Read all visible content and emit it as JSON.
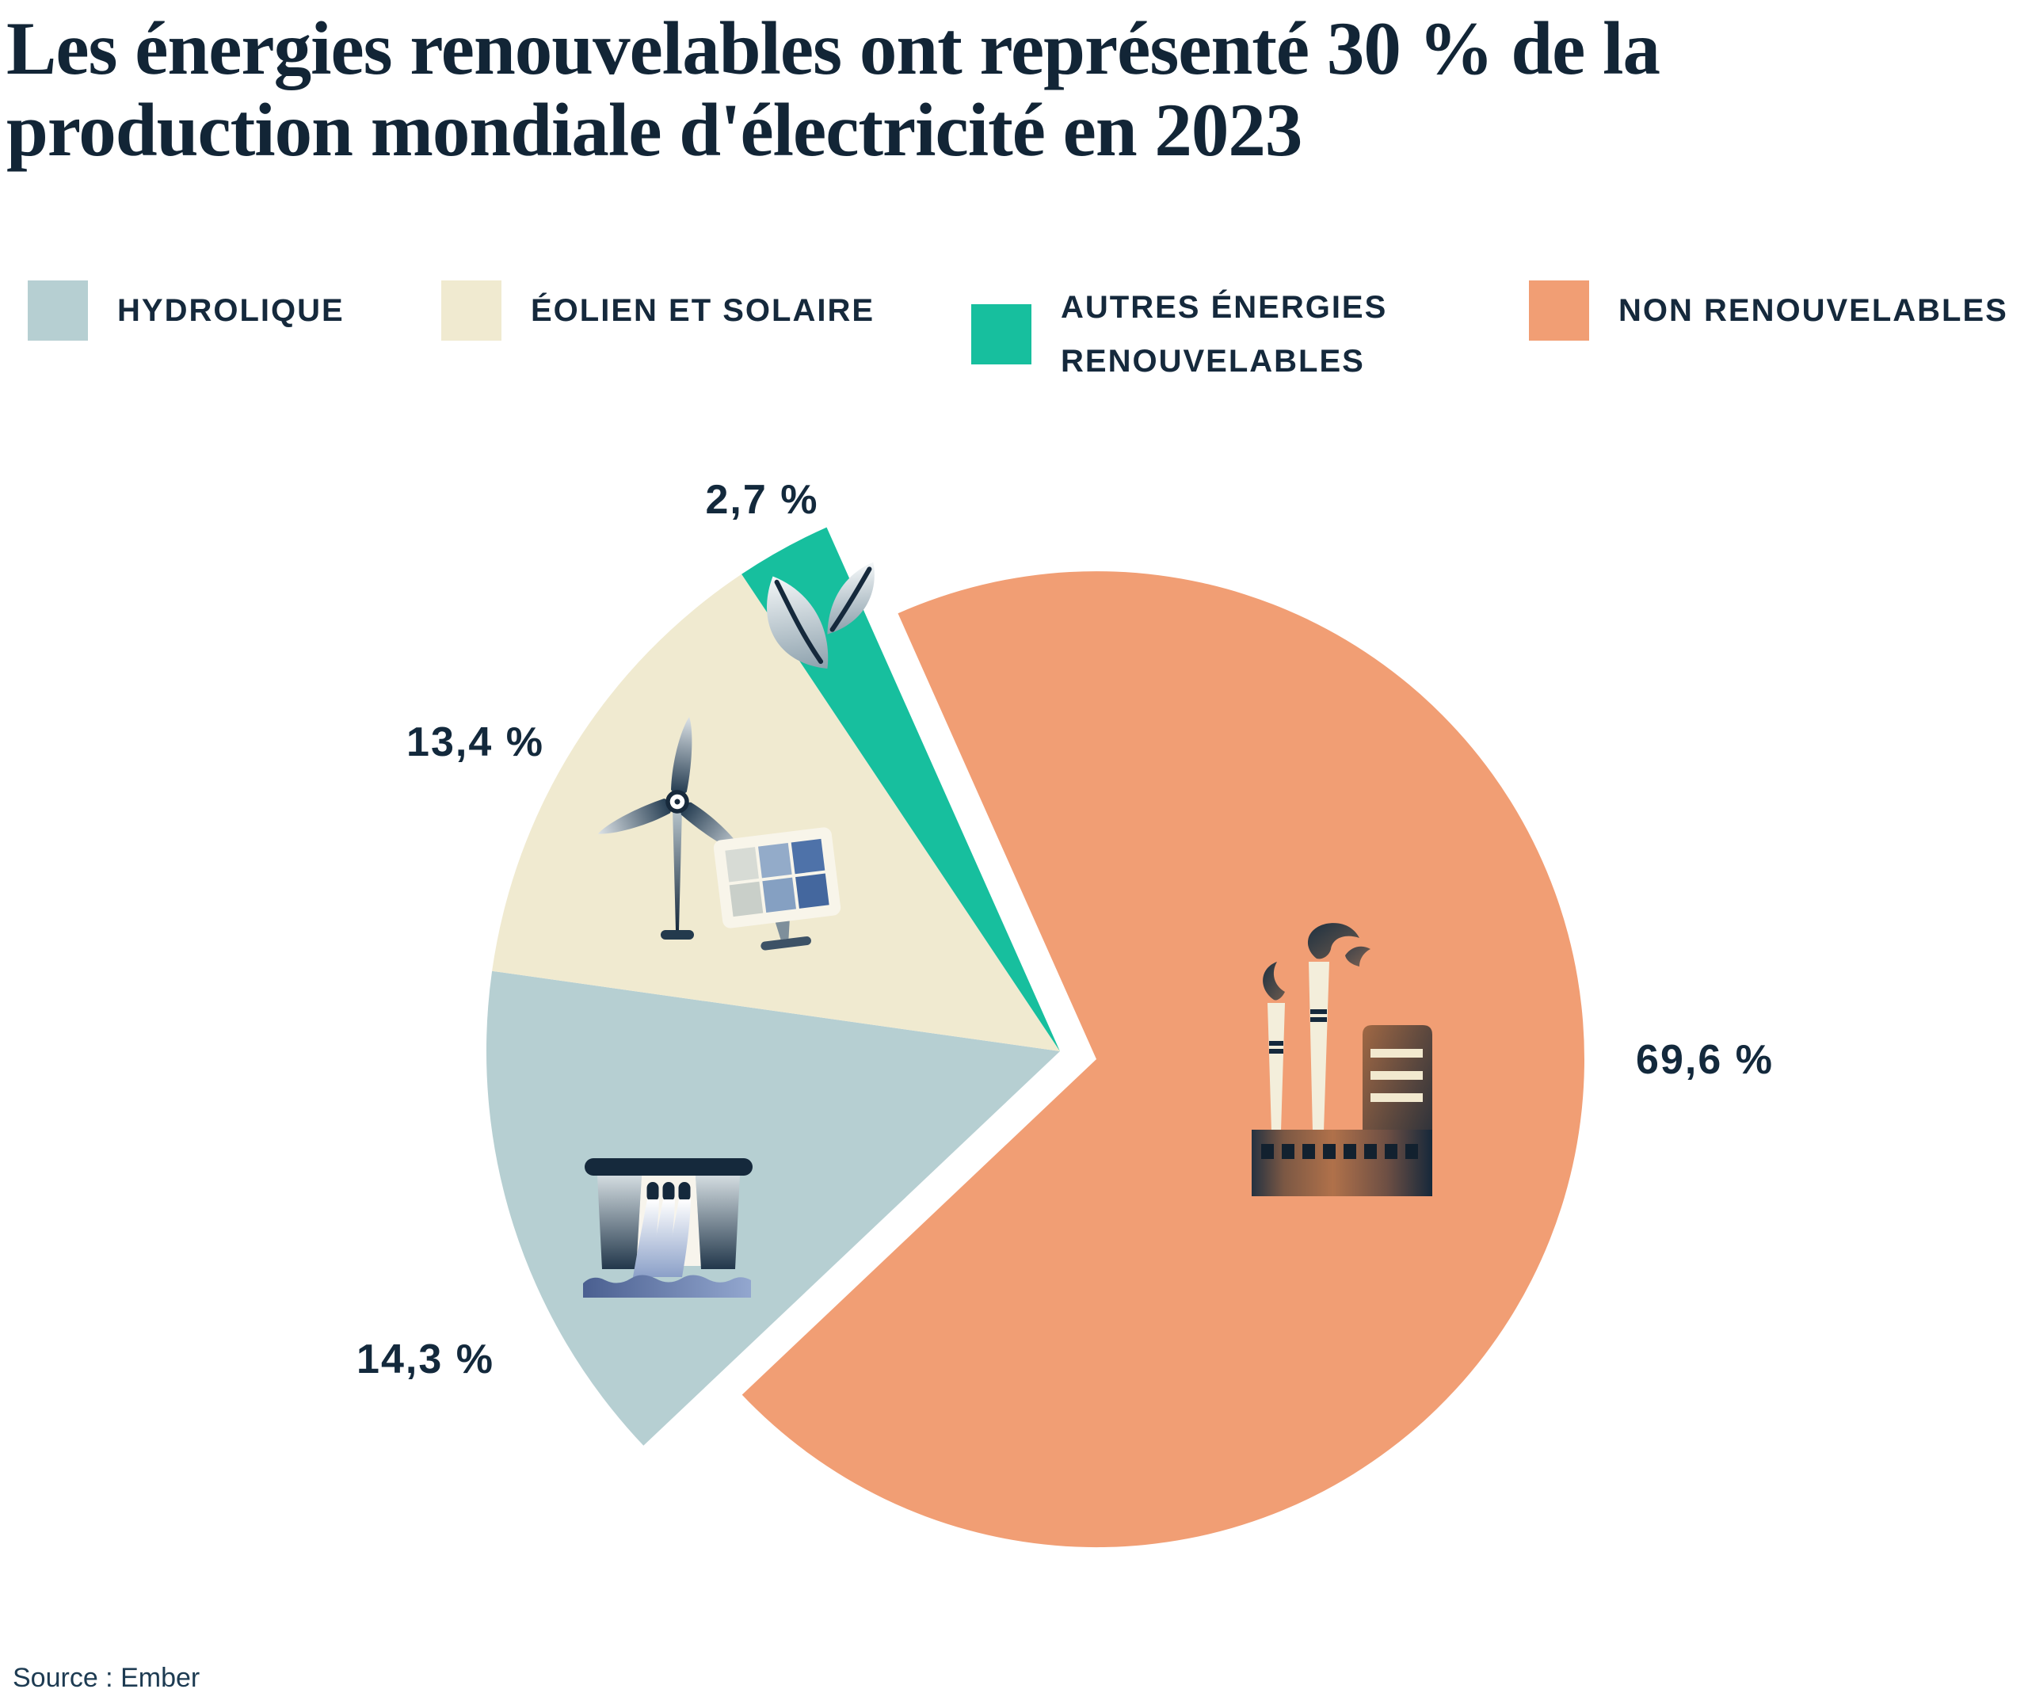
{
  "title": {
    "line1": "Les énergies renouvelables ont représenté 30 % de la",
    "line2": "production mondiale d'électricité en 2023",
    "full": "Les énergies renouvelables ont représenté 30 % de la production mondiale d'électricité en 2023"
  },
  "legend": {
    "items": [
      {
        "label": "HYDROLIQUE",
        "lines": [
          "HYDROLIQUE"
        ],
        "color": "#b6cfd2"
      },
      {
        "label": "ÉOLIEN ET SOLAIRE",
        "lines": [
          "ÉOLIEN ET SOLAIRE"
        ],
        "color": "#f0ead0"
      },
      {
        "label": "AUTRES ÉNERGIES RENOUVELABLES",
        "lines": [
          "AUTRES ÉNERGIES",
          "RENOUVELABLES"
        ],
        "color": "#17bf9e"
      },
      {
        "label": "NON RENOUVELABLES",
        "lines": [
          "NON RENOUVELABLES"
        ],
        "color": "#f19e74"
      }
    ]
  },
  "chart_data": {
    "type": "pie",
    "title": "Les énergies renouvelables ont représenté 30 % de la production mondiale d'électricité en 2023",
    "unit": "%",
    "year": "2023",
    "legend_position": "top",
    "slices": [
      {
        "label": "Hydrolique",
        "value": 14.3,
        "display": "14,3 %",
        "color": "#b6cfd2",
        "group": "renouvelable",
        "icon": "hydro-dam"
      },
      {
        "label": "Éolien et solaire",
        "value": 13.4,
        "display": "13,4 %",
        "color": "#f0ead0",
        "group": "renouvelable",
        "icon": "wind-turbine-solar-panel"
      },
      {
        "label": "Autres énergies renouvelables",
        "value": 2.7,
        "display": "2,7 %",
        "color": "#17bf9e",
        "group": "renouvelable",
        "icon": "leaf"
      },
      {
        "label": "Non renouvelables",
        "value": 69.6,
        "display": "69,6 %",
        "color": "#f19e74",
        "group": "non-renouvelable",
        "icon": "factory"
      }
    ]
  },
  "source": "Source : Ember",
  "colors": {
    "background": "#ffffff",
    "text_navy": "#15293c",
    "title_navy": "#122536",
    "hydro": "#b6cfd2",
    "wind_solar": "#f0ead0",
    "other_renewables": "#17bf9e",
    "non_renewables": "#f19e74"
  }
}
